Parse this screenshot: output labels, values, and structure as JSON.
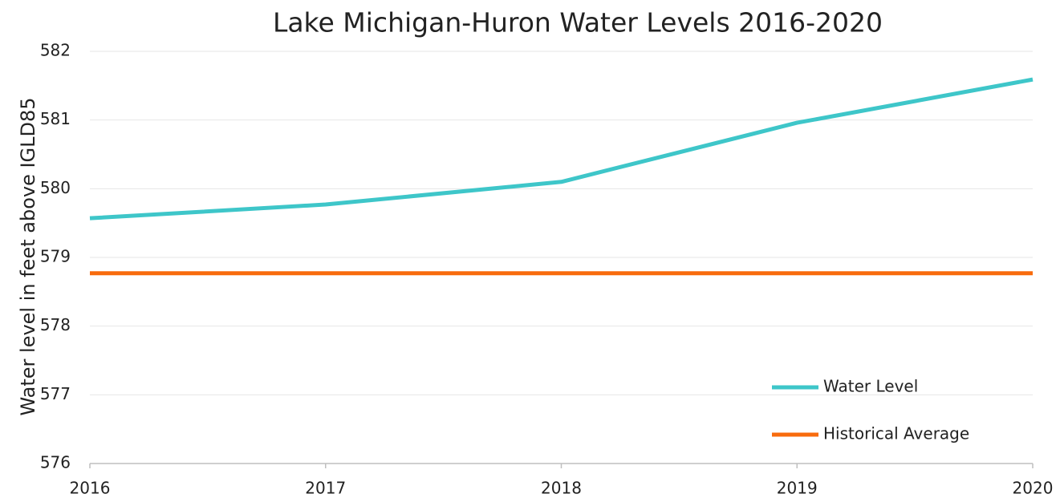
{
  "chart_data": {
    "type": "line",
    "title": "Lake Michigan-Huron Water Levels 2016-2020",
    "ylabel": "Water level in feet above IGLD85",
    "x": [
      2016,
      2017,
      2018,
      2019,
      2020
    ],
    "series": [
      {
        "name": "Water Level",
        "color": "#3ec6c9",
        "values": [
          579.57,
          579.77,
          580.1,
          580.96,
          581.59
        ]
      },
      {
        "name": "Historical Average",
        "color": "#f86b0d",
        "values": [
          578.77,
          578.77,
          578.77,
          578.77,
          578.77
        ]
      }
    ],
    "xlim": [
      2016,
      2020
    ],
    "xticks": [
      2016,
      2017,
      2018,
      2019,
      2020
    ],
    "ylim": [
      576,
      582
    ],
    "yticks": [
      576,
      577,
      578,
      579,
      580,
      581,
      582
    ],
    "grid": true,
    "legend": "lower right"
  }
}
